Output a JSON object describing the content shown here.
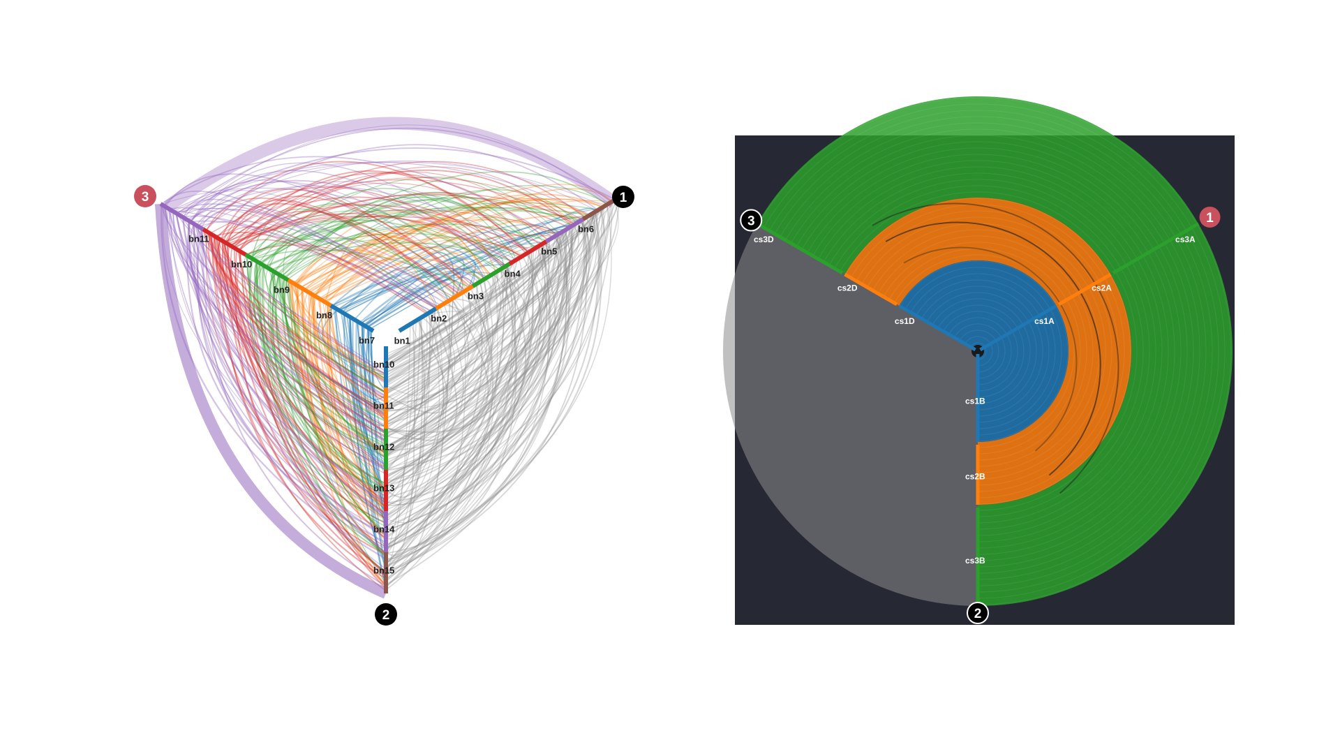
{
  "colors": {
    "blue": "#1f77b4",
    "orange": "#ff7f0e",
    "green": "#2ca02c",
    "red": "#d62728",
    "purple": "#9467bd",
    "brown": "#8c564b",
    "gray": "#8c8c8c",
    "dark_panel": "#262834",
    "badge_black": "#000000",
    "badge_red": "#c9505d"
  },
  "left_plot": {
    "badges": [
      {
        "id": "1",
        "label": "1",
        "highlight": false
      },
      {
        "id": "2",
        "label": "2",
        "highlight": false
      },
      {
        "id": "3",
        "label": "3",
        "highlight": true
      }
    ],
    "axes": {
      "axis1": [
        {
          "label": "bn1",
          "color": "blue"
        },
        {
          "label": "bn2",
          "color": "orange"
        },
        {
          "label": "bn3",
          "color": "green"
        },
        {
          "label": "bn4",
          "color": "red"
        },
        {
          "label": "bn5",
          "color": "purple"
        },
        {
          "label": "bn6",
          "color": "brown"
        }
      ],
      "axis2": [
        {
          "label": "bn10",
          "color": "blue"
        },
        {
          "label": "bn11",
          "color": "orange"
        },
        {
          "label": "bn12",
          "color": "green"
        },
        {
          "label": "bn13",
          "color": "red"
        },
        {
          "label": "bn14",
          "color": "purple"
        },
        {
          "label": "bn15",
          "color": "brown"
        }
      ],
      "axis3": [
        {
          "label": "bn7",
          "color": "blue"
        },
        {
          "label": "bn8",
          "color": "orange"
        },
        {
          "label": "bn9",
          "color": "green"
        },
        {
          "label": "bn10",
          "color": "red"
        },
        {
          "label": "bn11",
          "color": "purple"
        }
      ]
    }
  },
  "right_plot": {
    "badges": [
      {
        "id": "1",
        "label": "1",
        "highlight": true
      },
      {
        "id": "2",
        "label": "2",
        "highlight": false
      },
      {
        "id": "3",
        "label": "3",
        "highlight": false
      }
    ],
    "axes": {
      "axis1": [
        {
          "label": "cs1A",
          "color": "blue"
        },
        {
          "label": "cs2A",
          "color": "orange"
        },
        {
          "label": "cs3A",
          "color": "green"
        }
      ],
      "axis2": [
        {
          "label": "cs1B",
          "color": "blue"
        },
        {
          "label": "cs2B",
          "color": "orange"
        },
        {
          "label": "cs3B",
          "color": "green"
        }
      ],
      "axis3": [
        {
          "label": "cs1D",
          "color": "blue"
        },
        {
          "label": "cs2D",
          "color": "orange"
        },
        {
          "label": "cs3D",
          "color": "green"
        }
      ]
    }
  }
}
